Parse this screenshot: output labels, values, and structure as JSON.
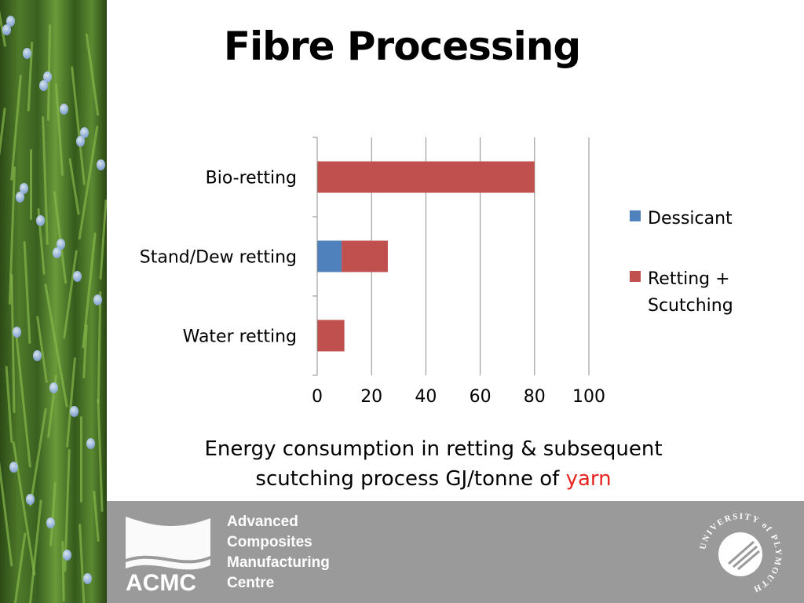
{
  "slide": {
    "title": "Fibre Processing"
  },
  "chart_data": {
    "type": "bar",
    "orientation": "horizontal",
    "stacked": true,
    "categories": [
      "Bio-retting",
      "Stand/Dew retting",
      "Water retting"
    ],
    "series": [
      {
        "name": "Dessicant",
        "values": [
          0,
          9,
          0
        ],
        "color": "#4f81bd"
      },
      {
        "name": "Retting + Scutching",
        "values": [
          80,
          17,
          10
        ],
        "color": "#c0504d"
      }
    ],
    "xlim": [
      0,
      100
    ],
    "xticks": [
      "0",
      "20",
      "40",
      "60",
      "80",
      "100"
    ],
    "grid": true,
    "legend": "right"
  },
  "caption": {
    "line1": "Energy consumption in retting & subsequent",
    "line2_prefix": "scutching process GJ/tonne of ",
    "line2_highlight": "yarn"
  },
  "footer": {
    "acmc_abbrev": "ACMC",
    "org_lines": [
      "Advanced",
      "Composites",
      "Manufacturing",
      "Centre"
    ],
    "university_seal": "UNIVERSITY of PLYMOUTH",
    "colors": {
      "band": "#9a9a9a",
      "text": "#ffffff"
    }
  }
}
